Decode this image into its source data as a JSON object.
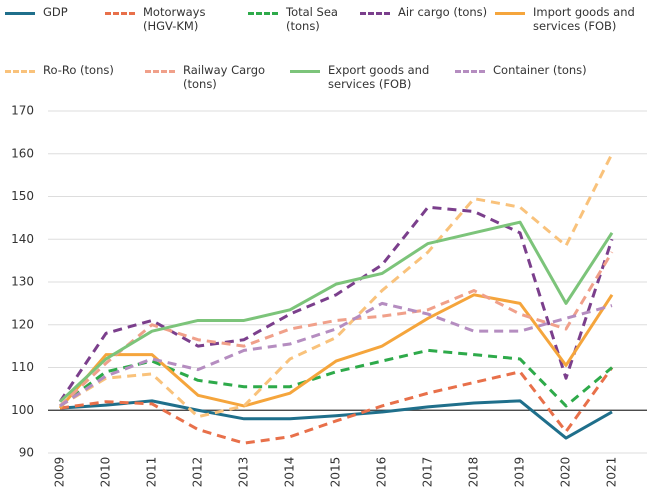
{
  "chart_data": {
    "type": "line",
    "categories": [
      "2009",
      "2010",
      "2011",
      "2012",
      "2013",
      "2014",
      "2015",
      "2016",
      "2017",
      "2018",
      "2019",
      "2020",
      "2021"
    ],
    "series": [
      {
        "name": "GDP",
        "color": "#1f6f8b",
        "dash": false,
        "values": [
          100.5,
          101.2,
          102.2,
          100,
          98,
          98,
          98.7,
          99.6,
          100.8,
          101.7,
          102.2,
          93.5,
          99.6
        ]
      },
      {
        "name": "Motorways (HGV-KM)",
        "color": "#e8704a",
        "dash": true,
        "values": [
          100.5,
          102,
          101.5,
          95.5,
          92.3,
          93.8,
          97.5,
          101,
          104,
          106.5,
          109,
          95,
          110
        ]
      },
      {
        "name": "Total Sea (tons)",
        "color": "#2eaa4a",
        "dash": true,
        "values": [
          101,
          109,
          111.5,
          107,
          105.5,
          105.5,
          109,
          111.5,
          114,
          113,
          112,
          101,
          110
        ]
      },
      {
        "name": "Air cargo (tons)",
        "color": "#7b3f8c",
        "dash": true,
        "values": [
          102,
          118,
          121,
          115,
          116.5,
          122.5,
          127,
          134,
          147.5,
          146.5,
          141.5,
          107.5,
          140
        ]
      },
      {
        "name": "Import goods and services (FOB)",
        "color": "#f5a53c",
        "dash": false,
        "values": [
          100.5,
          113,
          113,
          103.5,
          101,
          104,
          111.5,
          115,
          121.5,
          127,
          125,
          110.5,
          127
        ]
      },
      {
        "name": "Ro-Ro (tons)",
        "color": "#f9c27b",
        "dash": true,
        "values": [
          101,
          107.5,
          108.5,
          98.5,
          101,
          112,
          117,
          128,
          137,
          149.5,
          147.5,
          138.5,
          160
        ]
      },
      {
        "name": "Railway Cargo (tons)",
        "color": "#f0a08a",
        "dash": true,
        "values": [
          101,
          111,
          120,
          116.5,
          115,
          119,
          121,
          122,
          123.5,
          128,
          122.5,
          119,
          137
        ]
      },
      {
        "name": "Export goods and services (FOB)",
        "color": "#7cc47a",
        "dash": false,
        "values": [
          102,
          112,
          118.5,
          121,
          121,
          123.5,
          129.5,
          132,
          139,
          141.5,
          144,
          125,
          141.5
        ]
      },
      {
        "name": "Container (tons)",
        "color": "#b58dc0",
        "dash": true,
        "values": [
          101,
          108,
          112,
          109.5,
          114,
          115.5,
          119,
          125,
          122.5,
          118.5,
          118.5,
          121.5,
          124.5
        ]
      }
    ],
    "ylim": [
      90,
      170
    ],
    "yticks": [
      90,
      100,
      110,
      120,
      130,
      140,
      150,
      160,
      170
    ],
    "grid": true,
    "baseline": 100
  }
}
